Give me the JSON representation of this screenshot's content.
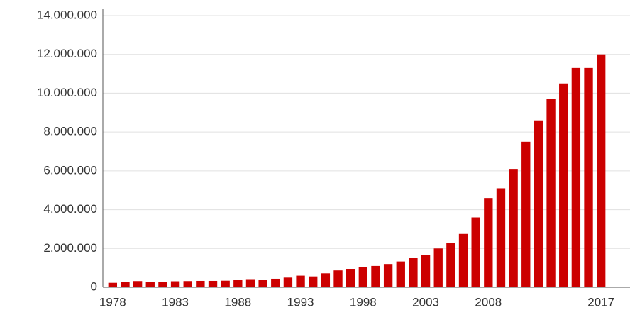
{
  "chart_data": {
    "type": "bar",
    "categories": [
      "1978",
      null,
      null,
      null,
      null,
      "1983",
      null,
      null,
      null,
      null,
      "1988",
      null,
      null,
      null,
      null,
      "1993",
      null,
      null,
      null,
      null,
      "1998",
      null,
      null,
      null,
      null,
      "2003",
      null,
      null,
      null,
      null,
      "2008",
      null,
      null,
      null,
      null,
      null,
      null,
      null,
      null,
      "2017"
    ],
    "values": [
      230000,
      280000,
      320000,
      290000,
      290000,
      310000,
      320000,
      330000,
      330000,
      340000,
      380000,
      420000,
      400000,
      440000,
      500000,
      600000,
      560000,
      720000,
      870000,
      950000,
      1030000,
      1100000,
      1200000,
      1330000,
      1500000,
      1650000,
      2000000,
      2300000,
      2750000,
      3600000,
      4600000,
      5100000,
      6100000,
      7500000,
      8600000,
      9700000,
      10500000,
      11300000,
      11300000,
      12000000
    ],
    "color": "#cc0000",
    "ylim": [
      0,
      14000000
    ],
    "yticks": [
      0,
      {
        "value": 2000000,
        "label": "2.000.000"
      },
      {
        "value": 4000000,
        "label": "4.000.000"
      },
      {
        "value": 6000000,
        "label": "6.000.000"
      },
      {
        "value": 8000000,
        "label": "8.000.000"
      },
      {
        "value": 10000000,
        "label": "10.000.000"
      },
      {
        "value": 12000000,
        "label": "12.000.000"
      },
      {
        "value": 14000000,
        "label": "14.000.000"
      }
    ],
    "grid": true
  }
}
